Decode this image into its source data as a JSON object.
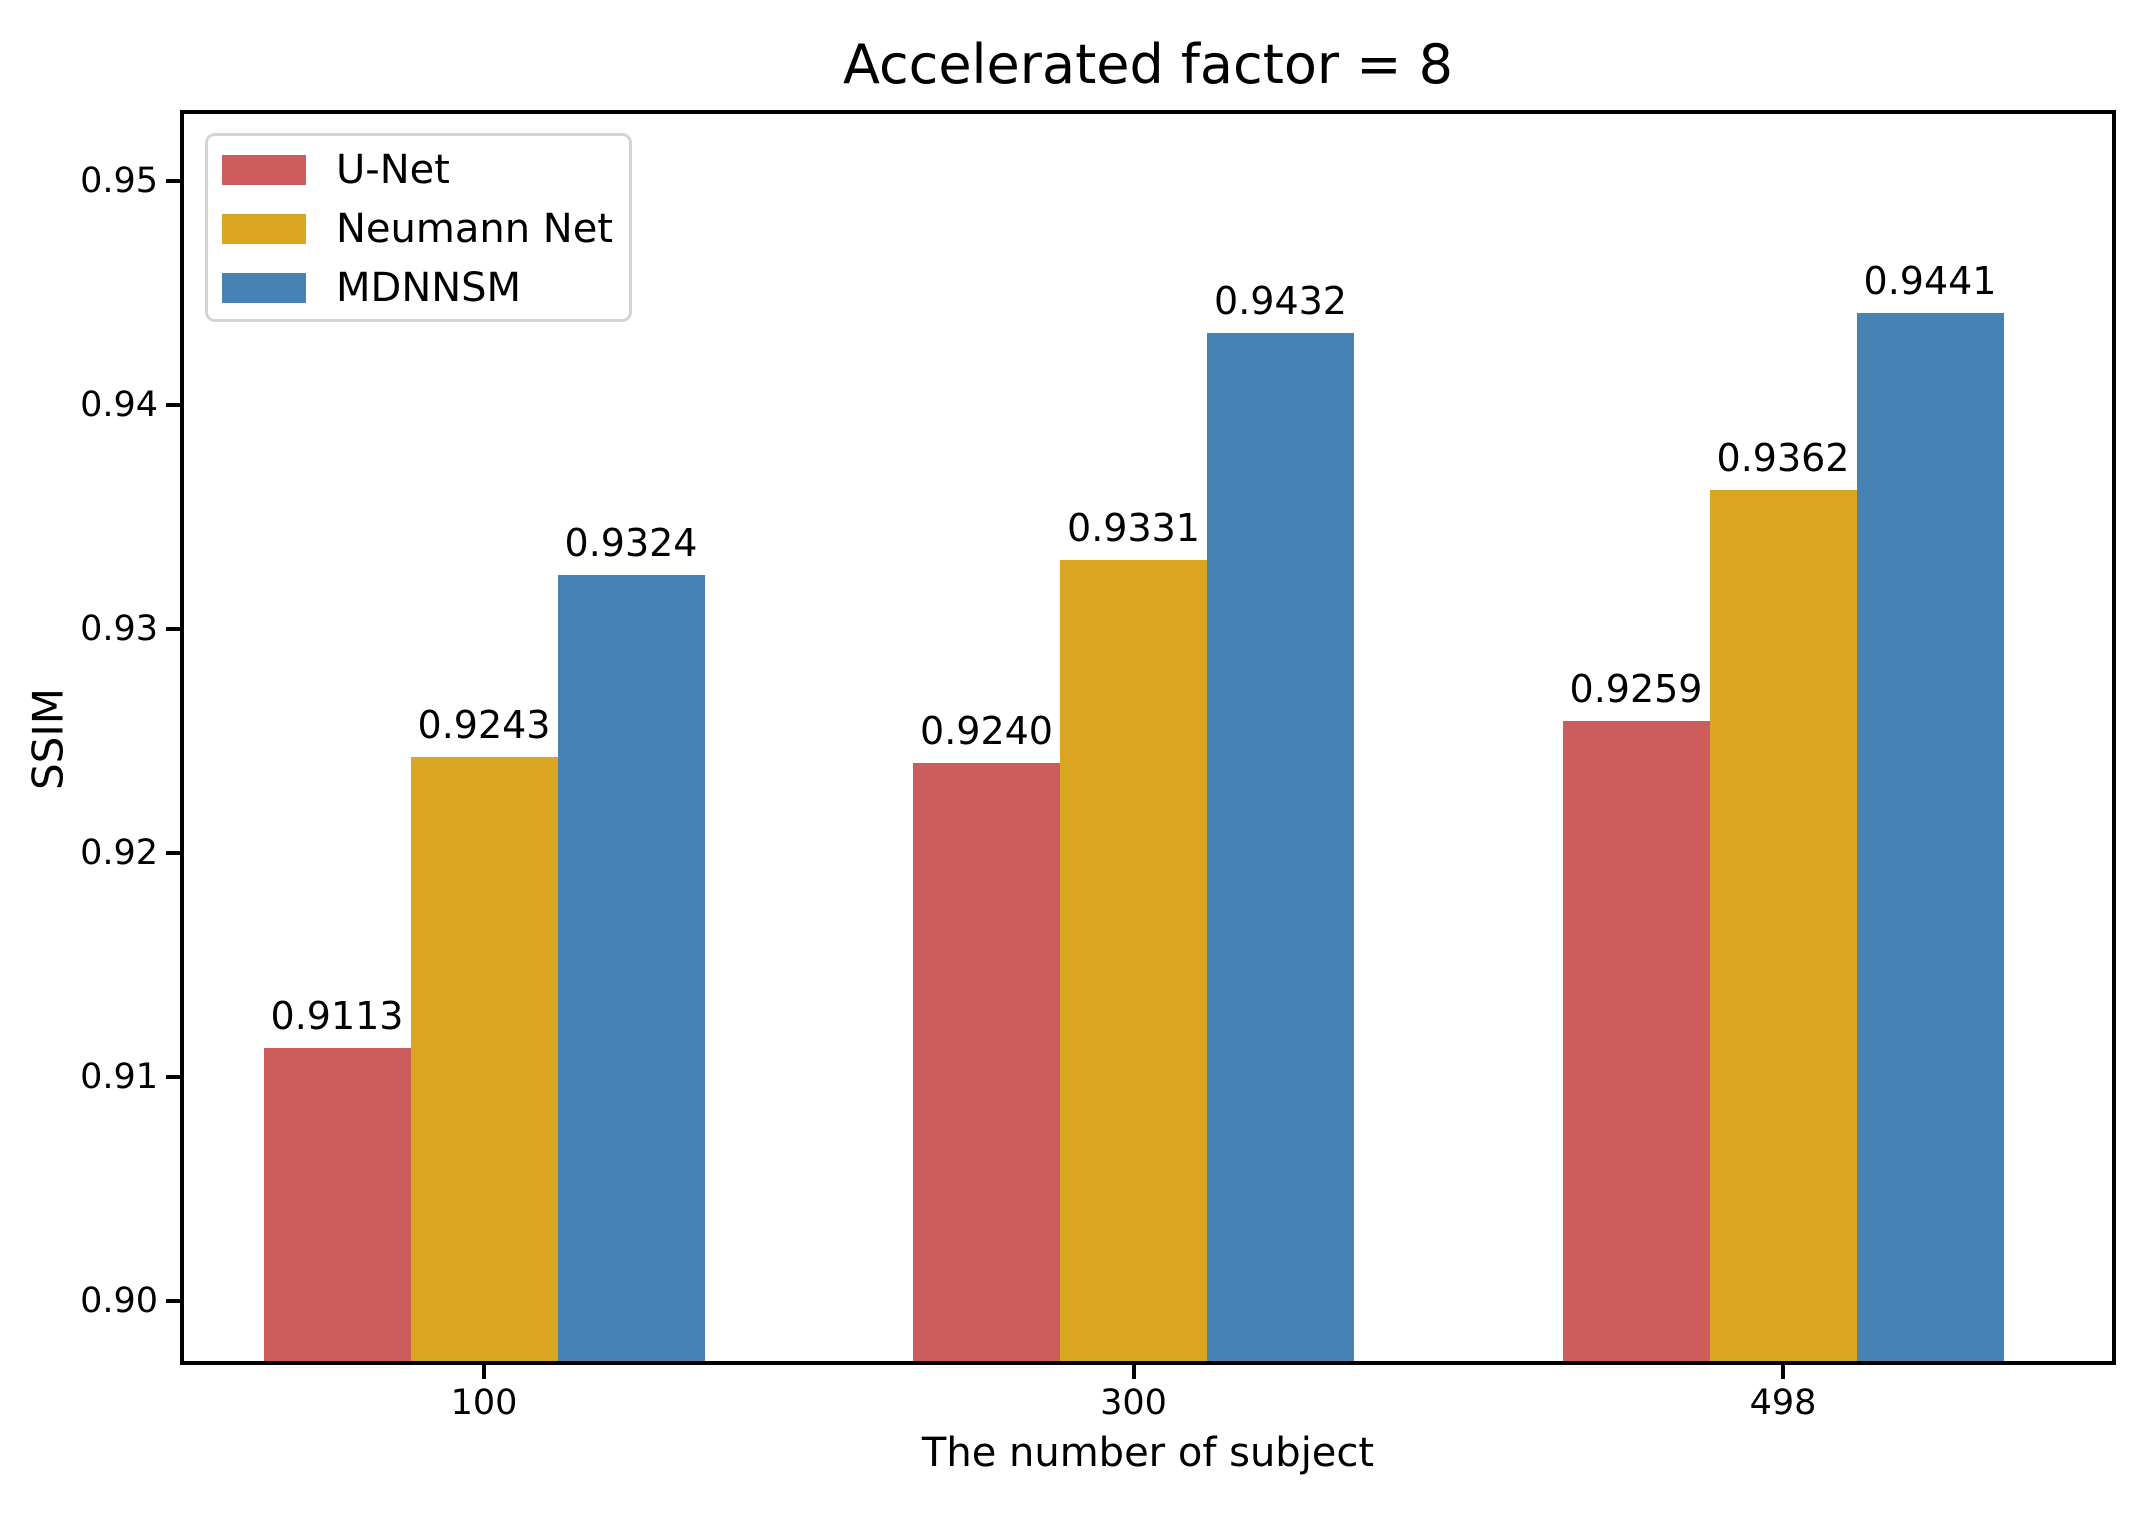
{
  "title": "Accelerated factor = 8",
  "chart_data": {
    "type": "bar",
    "title": "Accelerated factor = 8",
    "xlabel": "The number of subject",
    "ylabel": "SSIM",
    "categories": [
      "100",
      "300",
      "498"
    ],
    "series": [
      {
        "name": "U-Net",
        "color": "#cd5c5c",
        "values": [
          0.9113,
          0.924,
          0.9259
        ]
      },
      {
        "name": "Neumann Net",
        "color": "#daa520",
        "values": [
          0.9243,
          0.9331,
          0.9362
        ]
      },
      {
        "name": "MDNNSM",
        "color": "#4682b4",
        "values": [
          0.9324,
          0.9432,
          0.9441
        ]
      }
    ],
    "value_labels": [
      [
        "0.9113",
        "0.9240",
        "0.9259"
      ],
      [
        "0.9243",
        "0.9331",
        "0.9362"
      ],
      [
        "0.9324",
        "0.9432",
        "0.9441"
      ]
    ],
    "ylim": [
      0.8973,
      0.953
    ],
    "yticks": [
      {
        "value": 0.9,
        "label": "0.90"
      },
      {
        "value": 0.91,
        "label": "0.91"
      },
      {
        "value": 0.92,
        "label": "0.92"
      },
      {
        "value": 0.93,
        "label": "0.93"
      },
      {
        "value": 0.94,
        "label": "0.94"
      },
      {
        "value": 0.95,
        "label": "0.95"
      }
    ],
    "legend_position": "upper left",
    "grid": false,
    "axis_color": "#000000",
    "background_color": "#ffffff"
  }
}
